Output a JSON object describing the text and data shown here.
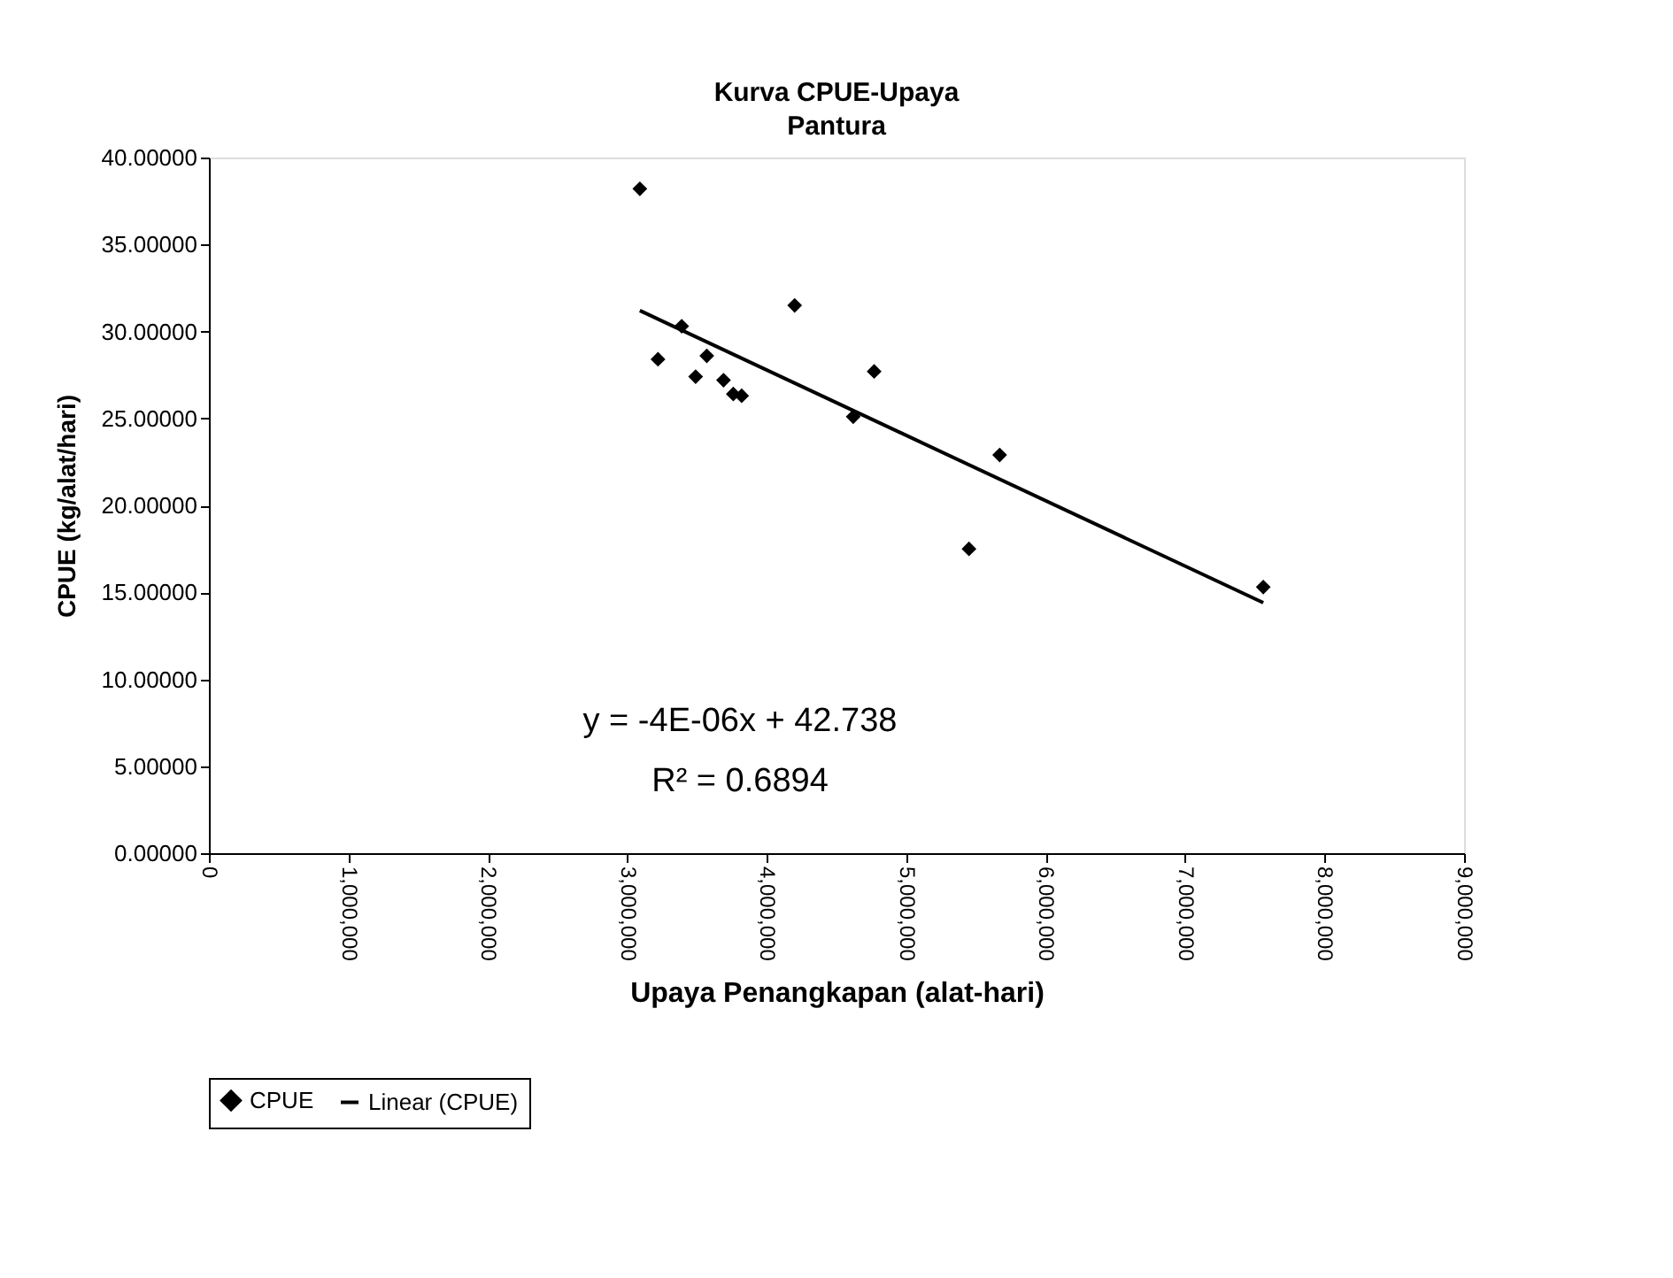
{
  "chart_data": {
    "type": "scatter",
    "title": "Kurva CPUE-Upaya",
    "subtitle": "Pantura",
    "xlabel": "Upaya Penangkapan (alat-hari)",
    "ylabel": "CPUE (kg/alat/hari)",
    "series": [
      {
        "name": "CPUE",
        "color": "#000000",
        "marker": "diamond",
        "x": [
          3090000,
          3220000,
          3390000,
          3490000,
          3570000,
          3690000,
          3760000,
          3820000,
          4200000,
          4620000,
          4770000,
          5450000,
          5670000,
          7560000
        ],
        "values": [
          38.2,
          28.4,
          30.3,
          27.4,
          28.6,
          27.2,
          26.4,
          26.3,
          31.5,
          25.1,
          27.7,
          17.5,
          22.9,
          15.3
        ]
      },
      {
        "name": "Linear (CPUE)",
        "type": "line",
        "color": "#000000",
        "marker": "none",
        "line_style": "solid",
        "x": [
          3090000,
          7560000
        ],
        "values": [
          31.2,
          14.4
        ]
      }
    ],
    "annotations": [
      "y = -4E-06x + 42.738",
      "R² = 0.6894"
    ],
    "xlim": [
      0,
      9000000
    ],
    "xticks": [
      {
        "value": 0,
        "label": "0"
      },
      {
        "value": 1000000,
        "label": "1,000,000"
      },
      {
        "value": 2000000,
        "label": "2,000,000"
      },
      {
        "value": 3000000,
        "label": "3,000,000"
      },
      {
        "value": 4000000,
        "label": "4,000,000"
      },
      {
        "value": 5000000,
        "label": "5,000,000"
      },
      {
        "value": 6000000,
        "label": "6,000,000"
      },
      {
        "value": 7000000,
        "label": "7,000,000"
      },
      {
        "value": 8000000,
        "label": "8,000,000"
      },
      {
        "value": 9000000,
        "label": "9,000,000"
      }
    ],
    "ylim": [
      0,
      40
    ],
    "yticks": [
      {
        "value": 0,
        "label": "0.00000"
      },
      {
        "value": 5,
        "label": "5.00000"
      },
      {
        "value": 10,
        "label": "10.00000"
      },
      {
        "value": 15,
        "label": "15.00000"
      },
      {
        "value": 20,
        "label": "20.00000"
      },
      {
        "value": 25,
        "label": "25.00000"
      },
      {
        "value": 30,
        "label": "30.00000"
      },
      {
        "value": 35,
        "label": "35.00000"
      },
      {
        "value": 40,
        "label": "40.00000"
      }
    ],
    "grid": false,
    "legend": "bottom"
  }
}
